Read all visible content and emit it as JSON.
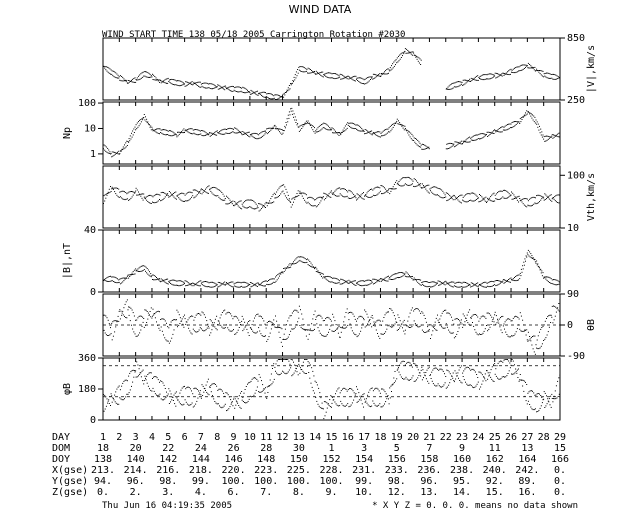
{
  "title": "WIND DATA",
  "subtitle": "WIND START TIME 138 05/18 2005 Carrington Rotation #2030",
  "footer_left": "Thu Jun 16 04:19:35 2005",
  "footer_right": "* X Y Z = 0. 0. 0. means no data shown",
  "chart_data": {
    "type": "line",
    "x_label_rows": [
      "DAY",
      "DOM",
      "DOY",
      "X(gse)",
      "Y(gse)",
      "Z(gse)"
    ],
    "days": [
      "1",
      "2",
      "3",
      "4",
      "5",
      "6",
      "7",
      "8",
      "9",
      "10",
      "11",
      "12",
      "13",
      "14",
      "15",
      "16",
      "17",
      "18",
      "19",
      "20",
      "21",
      "22",
      "23",
      "24",
      "25",
      "26",
      "27",
      "28",
      "29"
    ],
    "dom": [
      "18",
      "20",
      "22",
      "24",
      "26",
      "28",
      "30",
      "1",
      "3",
      "5",
      "7",
      "9",
      "11",
      "13",
      "15"
    ],
    "doy": [
      "138",
      "140",
      "142",
      "144",
      "146",
      "148",
      "150",
      "152",
      "154",
      "156",
      "158",
      "160",
      "162",
      "164",
      "166"
    ],
    "xgse": [
      "213.",
      "214.",
      "216.",
      "218.",
      "220.",
      "223.",
      "225.",
      "228.",
      "231.",
      "233.",
      "236.",
      "238.",
      "240.",
      "242.",
      "0."
    ],
    "ygse": [
      "94.",
      "96.",
      "98.",
      "99.",
      "100.",
      "100.",
      "100.",
      "100.",
      "99.",
      "98.",
      "96.",
      "95.",
      "92.",
      "89.",
      "0."
    ],
    "zgse": [
      "0.",
      "2.",
      "3.",
      "4.",
      "6.",
      "7.",
      "8.",
      "9.",
      "10.",
      "12.",
      "13.",
      "14.",
      "15.",
      "16.",
      "0."
    ],
    "panels": [
      {
        "id": "speed",
        "ylabel_left": "",
        "ylabel_right": "|V|,km/s",
        "scale": "linear",
        "ylim": [
          250,
          850
        ],
        "right_ticks": [
          "850",
          "250"
        ],
        "left_ticks": [],
        "x": [
          1,
          1.5,
          2,
          2.5,
          3,
          3.5,
          4,
          4.5,
          5,
          5.5,
          6,
          6.5,
          7,
          7.5,
          8,
          8.5,
          9,
          9.5,
          10,
          10.5,
          11,
          11.5,
          12,
          12.5,
          13,
          13.5,
          14,
          14.5,
          15,
          15.5,
          16,
          16.5,
          17,
          17.5,
          18,
          18.5,
          19,
          19.5,
          20,
          20.5,
          21,
          21.5,
          22,
          22.5,
          23,
          23.5,
          24,
          24.5,
          25,
          25.5,
          26,
          26.5,
          27,
          27.5,
          28,
          28.5,
          29
        ],
        "y": [
          580,
          520,
          470,
          430,
          450,
          510,
          480,
          430,
          440,
          420,
          410,
          420,
          400,
          390,
          380,
          370,
          360,
          355,
          330,
          320,
          300,
          280,
          290,
          400,
          560,
          540,
          520,
          500,
          490,
          480,
          470,
          460,
          430,
          480,
          500,
          540,
          640,
          730,
          700,
          610,
          0,
          0,
          360,
          400,
          420,
          450,
          470,
          480,
          490,
          500,
          530,
          560,
          590,
          550,
          500,
          480,
          470
        ]
      },
      {
        "id": "density",
        "ylabel_left": "Np",
        "ylabel_right": "",
        "scale": "log",
        "ylim": [
          0.4,
          110
        ],
        "left_ticks": [
          "100",
          "10",
          "1"
        ],
        "right_ticks": [],
        "x": [
          1,
          1.5,
          2,
          2.5,
          3,
          3.5,
          4,
          4.5,
          5,
          5.5,
          6,
          6.5,
          7,
          7.5,
          8,
          8.5,
          9,
          9.5,
          10,
          10.5,
          11,
          11.5,
          12,
          12.5,
          13,
          13.5,
          14,
          14.5,
          15,
          15.5,
          16,
          16.5,
          17,
          17.5,
          18,
          18.5,
          19,
          19.5,
          20,
          20.5,
          21,
          21.5,
          22,
          22.5,
          23,
          23.5,
          24,
          24.5,
          25,
          25.5,
          26,
          26.5,
          27,
          27.5,
          28,
          28.5,
          29
        ],
        "y": [
          2,
          1,
          1.2,
          3,
          12,
          30,
          9,
          8,
          7,
          6,
          9,
          8,
          7,
          6,
          7,
          8,
          9,
          7,
          6,
          5,
          8,
          12,
          7,
          60,
          10,
          20,
          8,
          14,
          9,
          6,
          15,
          12,
          8,
          7,
          6,
          9,
          20,
          10,
          4,
          2,
          1.8,
          0,
          2,
          2.5,
          3,
          4,
          5,
          6,
          8,
          10,
          14,
          20,
          50,
          20,
          4,
          5,
          6
        ]
      },
      {
        "id": "thermal",
        "ylabel_left": "",
        "ylabel_right": "Vth,km/s",
        "scale": "log",
        "ylim": [
          10,
          150
        ],
        "right_ticks": [
          "100",
          "10"
        ],
        "left_ticks": [],
        "x": [
          1,
          1.5,
          2,
          2.5,
          3,
          3.5,
          4,
          4.5,
          5,
          5.5,
          6,
          6.5,
          7,
          7.5,
          8,
          8.5,
          9,
          9.5,
          10,
          10.5,
          11,
          11.5,
          12,
          12.5,
          13,
          13.5,
          14,
          14.5,
          15,
          15.5,
          16,
          16.5,
          17,
          17.5,
          18,
          18.5,
          19,
          19.5,
          20,
          20.5,
          21,
          21.5,
          22,
          22.5,
          23,
          23.5,
          24,
          24.5,
          25,
          25.5,
          26,
          26.5,
          27,
          27.5,
          28,
          28.5,
          29
        ],
        "y": [
          35,
          60,
          45,
          40,
          50,
          38,
          35,
          40,
          45,
          42,
          38,
          45,
          50,
          55,
          48,
          35,
          30,
          28,
          30,
          25,
          28,
          40,
          60,
          30,
          50,
          35,
          30,
          40,
          45,
          50,
          45,
          40,
          42,
          48,
          55,
          50,
          70,
          80,
          75,
          65,
          55,
          50,
          40,
          38,
          36,
          40,
          38,
          35,
          40,
          45,
          42,
          35,
          30,
          35,
          40,
          38,
          36
        ]
      },
      {
        "id": "bfield",
        "ylabel_left": "|B|,nT",
        "ylabel_right": "",
        "scale": "linear",
        "ylim": [
          0,
          40
        ],
        "left_ticks": [
          "40",
          "0"
        ],
        "right_ticks": [],
        "x": [
          1,
          1.5,
          2,
          2.5,
          3,
          3.5,
          4,
          4.5,
          5,
          5.5,
          6,
          6.5,
          7,
          7.5,
          8,
          8.5,
          9,
          9.5,
          10,
          10.5,
          11,
          11.5,
          12,
          12.5,
          13,
          13.5,
          14,
          14.5,
          15,
          15.5,
          16,
          16.5,
          17,
          17.5,
          18,
          18.5,
          19,
          19.5,
          20,
          20.5,
          21,
          21.5,
          22,
          22.5,
          23,
          23.5,
          24,
          24.5,
          25,
          25.5,
          26,
          26.5,
          27,
          27.5,
          28,
          28.5,
          29
        ],
        "y": [
          8,
          9,
          7,
          10,
          14,
          16,
          10,
          8,
          7,
          6,
          6,
          5,
          6,
          5,
          5,
          6,
          5,
          5,
          5,
          5,
          6,
          8,
          14,
          18,
          22,
          20,
          15,
          10,
          8,
          7,
          7,
          6,
          6,
          7,
          8,
          9,
          11,
          12,
          9,
          6,
          5,
          6,
          6,
          5,
          5,
          5,
          5,
          5,
          6,
          7,
          8,
          10,
          26,
          20,
          10,
          7,
          6
        ]
      },
      {
        "id": "theta",
        "ylabel_left": "",
        "ylabel_right": "θB",
        "scale": "linear",
        "ylim": [
          -90,
          90
        ],
        "right_ticks": [
          "90",
          "0",
          "-90"
        ],
        "left_ticks": [],
        "x": [
          1,
          1.5,
          2,
          2.5,
          3,
          3.5,
          4,
          4.5,
          5,
          5.5,
          6,
          6.5,
          7,
          7.5,
          8,
          8.5,
          9,
          9.5,
          10,
          10.5,
          11,
          11.5,
          12,
          12.5,
          13,
          13.5,
          14,
          14.5,
          15,
          15.5,
          16,
          16.5,
          17,
          17.5,
          18,
          18.5,
          19,
          19.5,
          20,
          20.5,
          21,
          21.5,
          22,
          22.5,
          23,
          23.5,
          24,
          24.5,
          25,
          25.5,
          26,
          26.5,
          27,
          27.5,
          28,
          28.5,
          29
        ],
        "y": [
          10,
          -20,
          30,
          50,
          -10,
          20,
          40,
          10,
          -30,
          20,
          10,
          0,
          15,
          -5,
          10,
          20,
          0,
          5,
          -10,
          10,
          -20,
          15,
          -40,
          10,
          30,
          -30,
          20,
          -10,
          10,
          -20,
          30,
          -10,
          20,
          10,
          -15,
          25,
          10,
          -5,
          30,
          15,
          -20,
          10,
          20,
          -10,
          15,
          25,
          -5,
          10,
          20,
          0,
          -10,
          15,
          -30,
          -60,
          -20,
          30,
          60
        ]
      },
      {
        "id": "phi",
        "ylabel_left": "φB",
        "ylabel_right": "",
        "scale": "linear",
        "ylim": [
          0,
          360
        ],
        "left_ticks": [
          "360",
          "180",
          "0"
        ],
        "right_ticks": [],
        "x": [
          1,
          1.5,
          2,
          2.5,
          3,
          3.5,
          4,
          4.5,
          5,
          5.5,
          6,
          6.5,
          7,
          7.5,
          8,
          8.5,
          9,
          9.5,
          10,
          10.5,
          11,
          11.5,
          12,
          12.5,
          13,
          13.5,
          14,
          14.5,
          15,
          15.5,
          16,
          16.5,
          17,
          17.5,
          18,
          18.5,
          19,
          19.5,
          20,
          20.5,
          21,
          21.5,
          22,
          22.5,
          23,
          23.5,
          24,
          24.5,
          25,
          25.5,
          26,
          26.5,
          27,
          27.5,
          28,
          28.5,
          29
        ],
        "y": [
          100,
          120,
          150,
          200,
          300,
          250,
          220,
          180,
          140,
          120,
          150,
          130,
          170,
          200,
          140,
          110,
          100,
          120,
          180,
          220,
          160,
          300,
          330,
          310,
          290,
          330,
          180,
          60,
          120,
          140,
          130,
          150,
          110,
          140,
          130,
          140,
          300,
          290,
          280,
          270,
          260,
          250,
          240,
          260,
          270,
          250,
          230,
          260,
          280,
          300,
          320,
          260,
          140,
          100,
          120,
          110,
          220
        ]
      }
    ]
  }
}
